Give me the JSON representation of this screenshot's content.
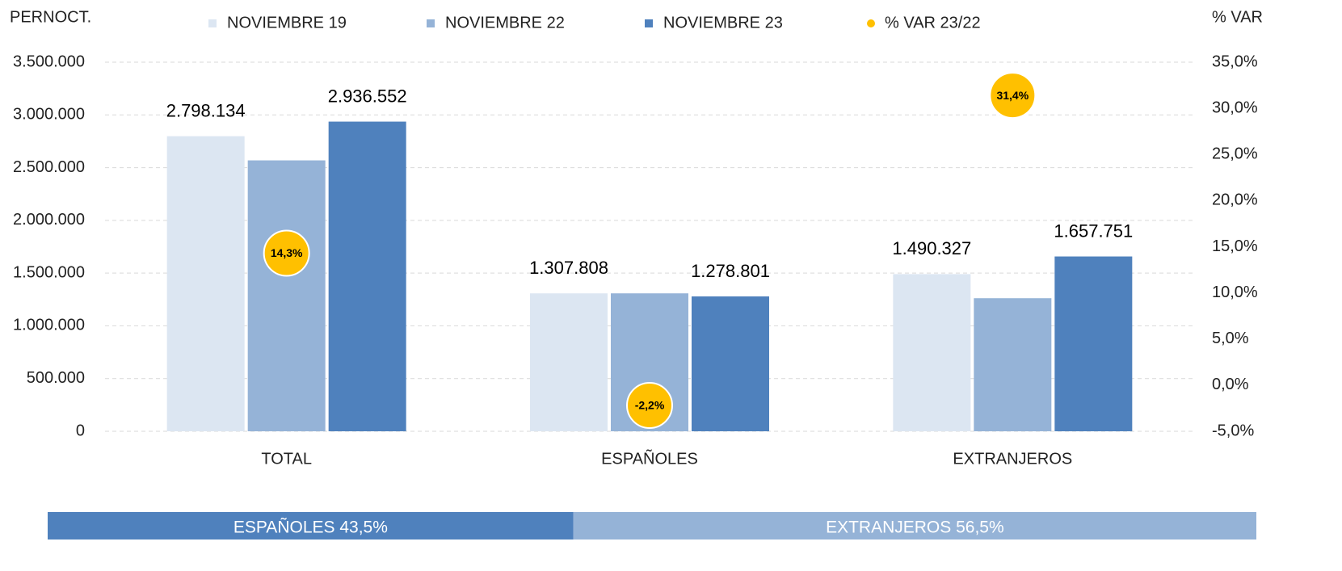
{
  "chart_data": {
    "type": "bar",
    "y_label": "PERNOCT.",
    "y2_label": "% VAR",
    "categories": [
      "TOTAL",
      "ESPAÑOLES",
      "EXTRANJEROS"
    ],
    "series": [
      {
        "name": "NOVIEMBRE 19",
        "color": "#dce6f2",
        "values": [
          2798134,
          1307808,
          1490327
        ],
        "value_labels": [
          "2.798.134",
          "1.307.808",
          "1.490.327"
        ]
      },
      {
        "name": "NOVIEMBRE 22",
        "color": "#95b3d7",
        "values": [
          2569000,
          1308000,
          1262000
        ]
      },
      {
        "name": "NOVIEMBRE 23",
        "color": "#4f81bd",
        "values": [
          2936552,
          1278801,
          1657751
        ],
        "value_labels": [
          "2.936.552",
          "1.278.801",
          "1.657.751"
        ]
      },
      {
        "name": "% VAR 23/22",
        "type": "scatter",
        "axis": "y2",
        "color": "#ffc000",
        "values": [
          14.3,
          -2.2,
          31.4
        ],
        "value_labels": [
          "14,3%",
          "-2,2%",
          "31,4%"
        ]
      }
    ],
    "ylim": [
      0,
      3500000
    ],
    "yticks": [
      0,
      {
        "value": 500000,
        "label": "500.000"
      },
      {
        "value": 1000000,
        "label": "1.000.000"
      },
      {
        "value": 1500000,
        "label": "1.500.000"
      },
      {
        "value": 2000000,
        "label": "2.000.000"
      },
      {
        "value": 2500000,
        "label": "2.500.000"
      },
      {
        "value": 3000000,
        "label": "3.000.000"
      },
      {
        "value": 3500000,
        "label": "3.500.000"
      }
    ],
    "y2lim": [
      -5,
      35
    ],
    "y2ticks": [
      {
        "value": -5,
        "label": "-5,0%"
      },
      {
        "value": 0,
        "label": "0,0%"
      },
      {
        "value": 5,
        "label": "5,0%"
      },
      {
        "value": 10,
        "label": "10,0%"
      },
      {
        "value": 15,
        "label": "15,0%"
      },
      {
        "value": 20,
        "label": "20,0%"
      },
      {
        "value": 25,
        "label": "25,0%"
      },
      {
        "value": 30,
        "label": "30,0%"
      },
      {
        "value": 35,
        "label": "35,0%"
      }
    ],
    "grid": true,
    "legend": "top",
    "share": [
      {
        "label": "ESPAÑOLES 43,5%",
        "value": 43.5,
        "color": "#4f81bd"
      },
      {
        "label": "EXTRANJEROS 56,5%",
        "value": 56.5,
        "color": "#95b3d7"
      }
    ]
  }
}
